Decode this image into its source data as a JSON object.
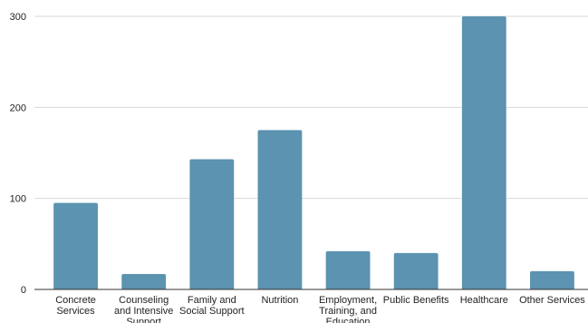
{
  "chart_data": {
    "type": "bar",
    "title": "",
    "xlabel": "",
    "ylabel": "",
    "ylim": [
      0,
      300
    ],
    "yticks": [
      0,
      100,
      200,
      300
    ],
    "grid": true,
    "bar_color": "#5b93b0",
    "categories": [
      [
        "Concrete",
        "Services"
      ],
      [
        "Counseling",
        "and Intensive",
        "Support"
      ],
      [
        "Family and",
        "Social Support"
      ],
      [
        "Nutrition"
      ],
      [
        "Employment,",
        "Training, and",
        "Education"
      ],
      [
        "Public Benefits"
      ],
      [
        "Healthcare"
      ],
      [
        "Other Services"
      ]
    ],
    "values": [
      95,
      17,
      143,
      175,
      42,
      40,
      300,
      20
    ]
  }
}
